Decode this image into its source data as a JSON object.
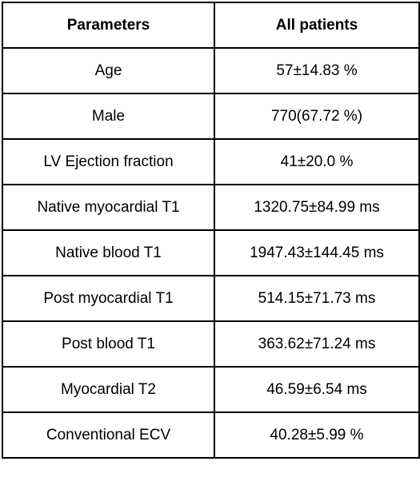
{
  "table": {
    "headers": [
      "Parameters",
      "All patients"
    ],
    "rows": [
      {
        "parameter": "Age",
        "value": "57±14.83 %"
      },
      {
        "parameter": "Male",
        "value": "770(67.72 %)"
      },
      {
        "parameter": "LV Ejection fraction",
        "value": "41±20.0 %"
      },
      {
        "parameter": "Native myocardial T1",
        "value": "1320.75±84.99 ms"
      },
      {
        "parameter": "Native blood T1",
        "value": "1947.43±144.45 ms"
      },
      {
        "parameter": "Post myocardial T1",
        "value": "514.15±71.73 ms"
      },
      {
        "parameter": "Post blood T1",
        "value": "363.62±71.24 ms"
      },
      {
        "parameter": "Myocardial T2",
        "value": "46.59±6.54 ms"
      },
      {
        "parameter": "Conventional ECV",
        "value": "40.28±5.99 %"
      }
    ]
  }
}
